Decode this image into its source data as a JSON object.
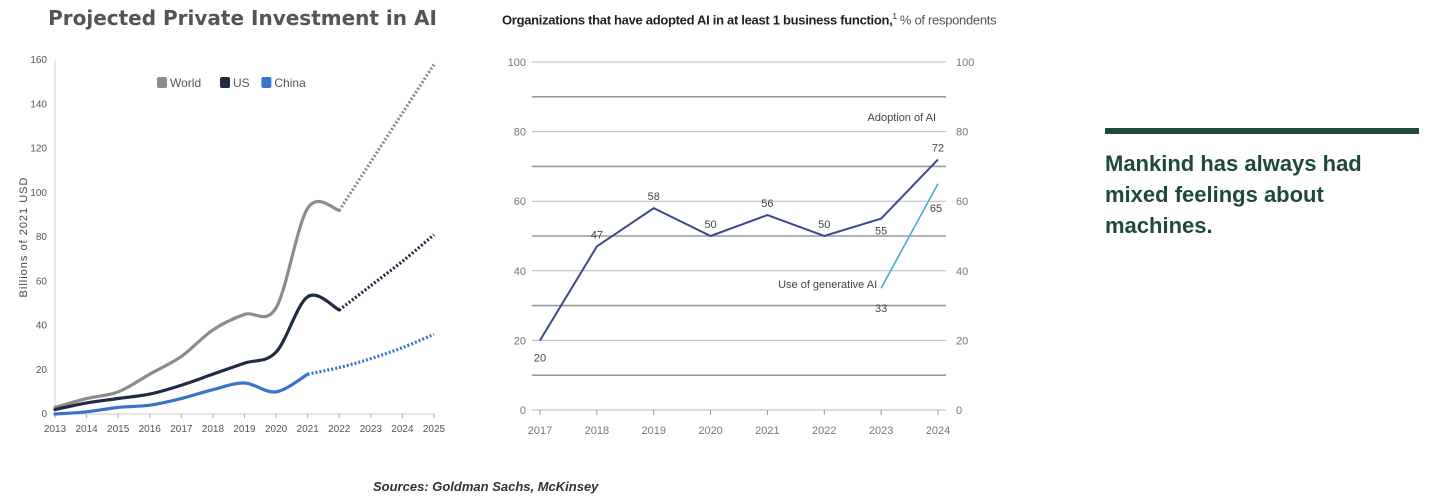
{
  "chart_data": [
    {
      "type": "line",
      "title": "Projected Private Investment in AI",
      "ylabel": "Billions of 2021 USD",
      "xlabel": "",
      "x": [
        2013,
        2014,
        2015,
        2016,
        2017,
        2018,
        2019,
        2020,
        2021,
        2022,
        2023,
        2024,
        2025
      ],
      "ylim": [
        0,
        160
      ],
      "yticks": [
        0,
        20,
        40,
        60,
        80,
        100,
        120,
        140,
        160
      ],
      "legend_position": "top-left",
      "series": [
        {
          "name": "World",
          "color": "#8c8c8c",
          "values": [
            3,
            7,
            10,
            18,
            26,
            38,
            45,
            48,
            93,
            92,
            114,
            136,
            158
          ],
          "projected_from": 2022
        },
        {
          "name": "US",
          "color": "#1f2a44",
          "values": [
            2,
            5,
            7,
            9,
            13,
            18,
            23,
            28,
            53,
            47,
            58,
            69,
            81
          ],
          "projected_from": 2022
        },
        {
          "name": "China",
          "color": "#3a74c9",
          "values": [
            0,
            1,
            3,
            4,
            7,
            11,
            14,
            10,
            18,
            21,
            25,
            30,
            36
          ],
          "projected_from": 2021
        }
      ]
    },
    {
      "type": "line",
      "title": "Organizations that have adopted AI in at least 1 business function,",
      "title_footnote": "1",
      "subtitle": "% of respondents",
      "x": [
        2017,
        2018,
        2019,
        2020,
        2021,
        2022,
        2023,
        2024
      ],
      "ylim": [
        0,
        100
      ],
      "yticks": [
        0,
        20,
        40,
        60,
        80,
        100
      ],
      "grid": true,
      "series": [
        {
          "name": "Adoption of AI",
          "color": "#3b4a8a",
          "x": [
            2017,
            2018,
            2019,
            2020,
            2021,
            2022,
            2023,
            2024
          ],
          "values": [
            20,
            47,
            58,
            50,
            56,
            50,
            55,
            72
          ]
        },
        {
          "name": "Use of generative AI",
          "color": "#4aa8d8",
          "x": [
            2023,
            2024
          ],
          "values": [
            33,
            65
          ]
        }
      ]
    }
  ],
  "quote": "Mankind has always had mixed feelings about machines.",
  "sources": "Sources: Goldman Sachs, McKinsey"
}
